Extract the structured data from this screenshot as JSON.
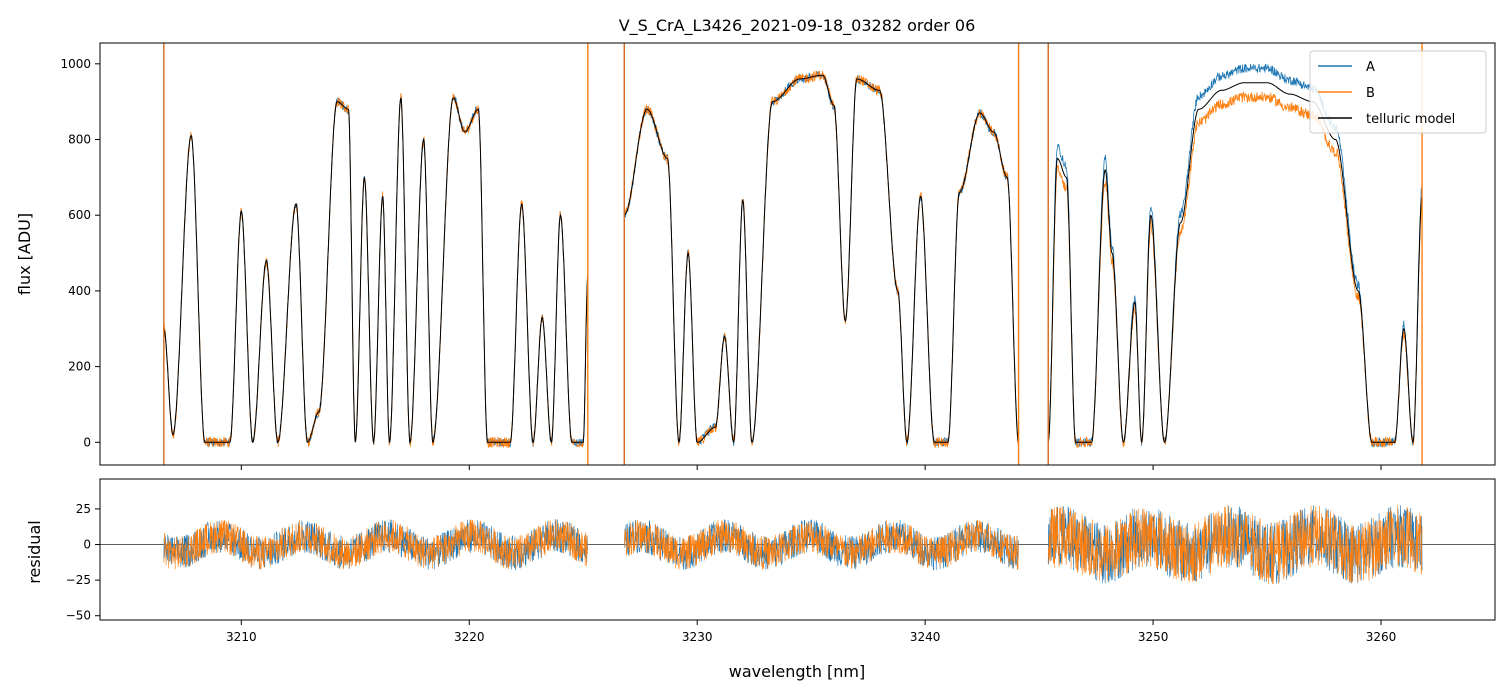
{
  "chart_data": [
    {
      "type": "line",
      "title": "V_S_CrA_L3426_2021-09-18_03282  order 06",
      "xlabel": "",
      "ylabel": "flux [ADU]",
      "xlim": [
        3203.8,
        3265.0
      ],
      "ylim": [
        -60,
        1055
      ],
      "yticks": [
        0,
        200,
        400,
        600,
        800,
        1000
      ],
      "ytick_labels": [
        "0",
        "200",
        "400",
        "600",
        "800",
        "1000"
      ],
      "xticks": [
        3210,
        3220,
        3230,
        3240,
        3250,
        3260
      ],
      "legend": {
        "position": "top-right",
        "entries": [
          "A",
          "B",
          "telluric model"
        ]
      },
      "colors": {
        "A": "#1f77b4",
        "B": "#ff7f0e",
        "model": "#000000"
      },
      "segments": [
        {
          "x_start": 3206.6,
          "x_end": 3225.2,
          "vline_start": true,
          "vline_end": true
        },
        {
          "x_start": 3226.8,
          "x_end": 3244.1,
          "vline_start": true,
          "vline_end": true
        },
        {
          "x_start": 3245.4,
          "x_end": 3261.8,
          "vline_start": true,
          "vline_end": true
        }
      ],
      "envelope_nodes": [
        [
          3206.6,
          300
        ],
        [
          3207.0,
          20
        ],
        [
          3207.8,
          810
        ],
        [
          3208.4,
          0
        ],
        [
          3209.5,
          0
        ],
        [
          3210.0,
          610
        ],
        [
          3210.5,
          0
        ],
        [
          3211.1,
          480
        ],
        [
          3211.6,
          0
        ],
        [
          3212.4,
          630
        ],
        [
          3212.9,
          0
        ],
        [
          3213.4,
          80
        ],
        [
          3214.2,
          900
        ],
        [
          3214.7,
          880
        ],
        [
          3215.0,
          0
        ],
        [
          3215.4,
          700
        ],
        [
          3215.8,
          0
        ],
        [
          3216.2,
          650
        ],
        [
          3216.5,
          0
        ],
        [
          3217.0,
          910
        ],
        [
          3217.4,
          0
        ],
        [
          3218.0,
          800
        ],
        [
          3218.4,
          0
        ],
        [
          3219.3,
          910
        ],
        [
          3219.8,
          820
        ],
        [
          3220.4,
          880
        ],
        [
          3220.8,
          0
        ],
        [
          3221.8,
          0
        ],
        [
          3222.3,
          630
        ],
        [
          3222.8,
          0
        ],
        [
          3223.2,
          330
        ],
        [
          3223.6,
          0
        ],
        [
          3224.0,
          600
        ],
        [
          3224.5,
          0
        ],
        [
          3225.0,
          0
        ],
        [
          3225.2,
          440
        ],
        [
          3226.8,
          600
        ],
        [
          3227.8,
          880
        ],
        [
          3228.7,
          750
        ],
        [
          3229.2,
          0
        ],
        [
          3229.6,
          500
        ],
        [
          3230.0,
          0
        ],
        [
          3230.8,
          40
        ],
        [
          3231.2,
          280
        ],
        [
          3231.6,
          0
        ],
        [
          3232.0,
          640
        ],
        [
          3232.4,
          0
        ],
        [
          3233.3,
          900
        ],
        [
          3234.5,
          960
        ],
        [
          3235.5,
          970
        ],
        [
          3236.0,
          890
        ],
        [
          3236.5,
          320
        ],
        [
          3237.0,
          960
        ],
        [
          3238.0,
          930
        ],
        [
          3238.8,
          400
        ],
        [
          3239.2,
          0
        ],
        [
          3239.8,
          650
        ],
        [
          3240.4,
          0
        ],
        [
          3241.0,
          0
        ],
        [
          3241.5,
          660
        ],
        [
          3242.4,
          870
        ],
        [
          3243.0,
          820
        ],
        [
          3243.6,
          700
        ],
        [
          3244.1,
          0
        ],
        [
          3245.4,
          0
        ],
        [
          3245.8,
          750
        ],
        [
          3246.2,
          700
        ],
        [
          3246.6,
          0
        ],
        [
          3247.3,
          0
        ],
        [
          3247.9,
          720
        ],
        [
          3248.2,
          500
        ],
        [
          3248.7,
          0
        ],
        [
          3249.2,
          370
        ],
        [
          3249.5,
          0
        ],
        [
          3249.9,
          600
        ],
        [
          3250.5,
          0
        ],
        [
          3251.2,
          580
        ],
        [
          3252.0,
          880
        ],
        [
          3253.0,
          930
        ],
        [
          3254.0,
          950
        ],
        [
          3255.0,
          950
        ],
        [
          3256.0,
          920
        ],
        [
          3257.0,
          900
        ],
        [
          3258.0,
          800
        ],
        [
          3259.0,
          400
        ],
        [
          3259.6,
          0
        ],
        [
          3260.6,
          0
        ],
        [
          3261.0,
          300
        ],
        [
          3261.4,
          0
        ],
        [
          3261.8,
          650
        ]
      ]
    },
    {
      "type": "line",
      "title": "",
      "xlabel": "wavelength [nm]",
      "ylabel": "residual",
      "xlim": [
        3203.8,
        3265.0
      ],
      "ylim": [
        -53,
        46
      ],
      "yticks": [
        -50,
        -25,
        0,
        25
      ],
      "ytick_labels": [
        "−50",
        "−25",
        "0",
        "25"
      ],
      "xticks": [
        3210,
        3220,
        3230,
        3240,
        3250,
        3260
      ],
      "xtick_labels": [
        "3210",
        "3220",
        "3230",
        "3240",
        "3250",
        "3260"
      ],
      "hline": 0,
      "noise_amplitude": {
        "low": 12,
        "high": 22
      }
    }
  ]
}
